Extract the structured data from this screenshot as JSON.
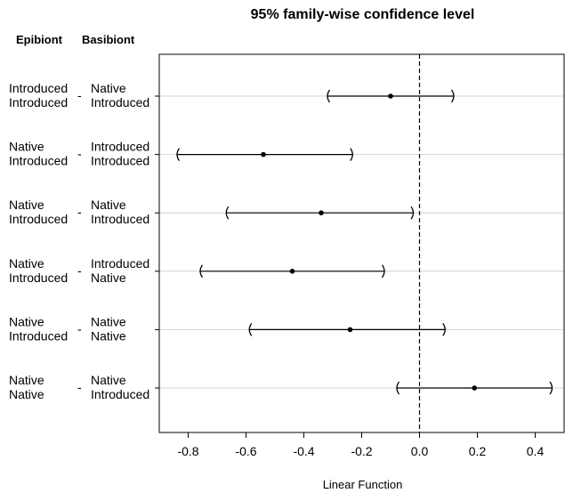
{
  "chart_data": {
    "type": "interval",
    "title": "95% family-wise confidence level",
    "xlabel": "Linear Function",
    "xlim": [
      -0.9,
      0.5
    ],
    "x_ticks": [
      -0.8,
      -0.6,
      -0.4,
      -0.2,
      0.0,
      0.2,
      0.4
    ],
    "x_tick_labels": [
      "-0.8",
      "-0.6",
      "-0.4",
      "-0.2",
      "0.0",
      "0.2",
      "0.4"
    ],
    "reference_line": 0,
    "column_headers": {
      "left": "Epibiont",
      "right": "Basibiont"
    },
    "rows": [
      {
        "left": [
          "Introduced",
          "Introduced"
        ],
        "sep": "-",
        "right": [
          "Native",
          "Introduced"
        ],
        "estimate": -0.1,
        "lower": -0.32,
        "upper": 0.12
      },
      {
        "left": [
          "Native",
          "Introduced"
        ],
        "sep": "-",
        "right": [
          "Introduced",
          "Introduced"
        ],
        "estimate": -0.54,
        "lower": -0.84,
        "upper": -0.23
      },
      {
        "left": [
          "Native",
          "Introduced"
        ],
        "sep": "-",
        "right": [
          "Native",
          "Introduced"
        ],
        "estimate": -0.34,
        "lower": -0.67,
        "upper": -0.02
      },
      {
        "left": [
          "Native",
          "Introduced"
        ],
        "sep": "-",
        "right": [
          "Introduced",
          "Native"
        ],
        "estimate": -0.44,
        "lower": -0.76,
        "upper": -0.12
      },
      {
        "left": [
          "Native",
          "Introduced"
        ],
        "sep": "-",
        "right": [
          "Native",
          "Native"
        ],
        "estimate": -0.24,
        "lower": -0.59,
        "upper": 0.09
      },
      {
        "left": [
          "Native",
          "Native"
        ],
        "sep": "-",
        "right": [
          "Native",
          "Introduced"
        ],
        "estimate": 0.19,
        "lower": -0.08,
        "upper": 0.46
      }
    ],
    "grid": "horizontal",
    "colors": {
      "line": "#000000",
      "grid": "#d3d3d3"
    }
  }
}
